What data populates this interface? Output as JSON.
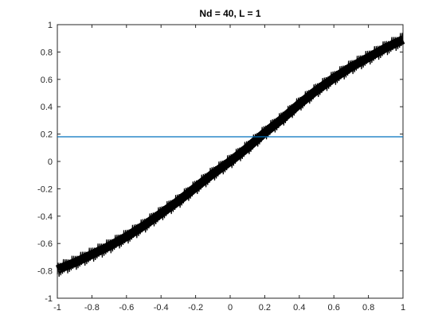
{
  "chart_data": {
    "type": "line",
    "title": "Nd = 40, L = 1",
    "xlabel": "",
    "ylabel": "",
    "xlim": [
      -1,
      1
    ],
    "ylim": [
      -1,
      1
    ],
    "xticks": [
      -1,
      -0.8,
      -0.6,
      -0.4,
      -0.2,
      0,
      0.2,
      0.4,
      0.6,
      0.8,
      1
    ],
    "yticks": [
      -1,
      -0.8,
      -0.6,
      -0.4,
      -0.2,
      0,
      0.2,
      0.4,
      0.6,
      0.8,
      1
    ],
    "xtick_labels": [
      "-1",
      "-0.8",
      "-0.6",
      "-0.4",
      "-0.2",
      "0",
      "0.2",
      "0.4",
      "0.6",
      "0.8",
      "1"
    ],
    "ytick_labels": [
      "-1",
      "-0.8",
      "-0.6",
      "-0.4",
      "-0.2",
      "0",
      "0.2",
      "0.4",
      "0.6",
      "0.8",
      "1"
    ],
    "grid": false,
    "series": [
      {
        "color": "#000000",
        "style": "thick noisy band",
        "x": [
          -1,
          -0.9,
          -0.8,
          -0.7,
          -0.6,
          -0.5,
          -0.4,
          -0.3,
          -0.2,
          -0.1,
          0,
          0.1,
          0.2,
          0.3,
          0.4,
          0.5,
          0.6,
          0.7,
          0.8,
          0.9,
          1
        ],
        "y": [
          -0.79,
          -0.74,
          -0.68,
          -0.62,
          -0.55,
          -0.47,
          -0.38,
          -0.29,
          -0.19,
          -0.09,
          0.0,
          0.1,
          0.21,
          0.31,
          0.42,
          0.52,
          0.61,
          0.69,
          0.76,
          0.83,
          0.89
        ]
      },
      {
        "color": "#0072BD",
        "style": "horizontal line",
        "x": [
          -1,
          1
        ],
        "y": [
          0.18,
          0.18
        ]
      }
    ]
  }
}
